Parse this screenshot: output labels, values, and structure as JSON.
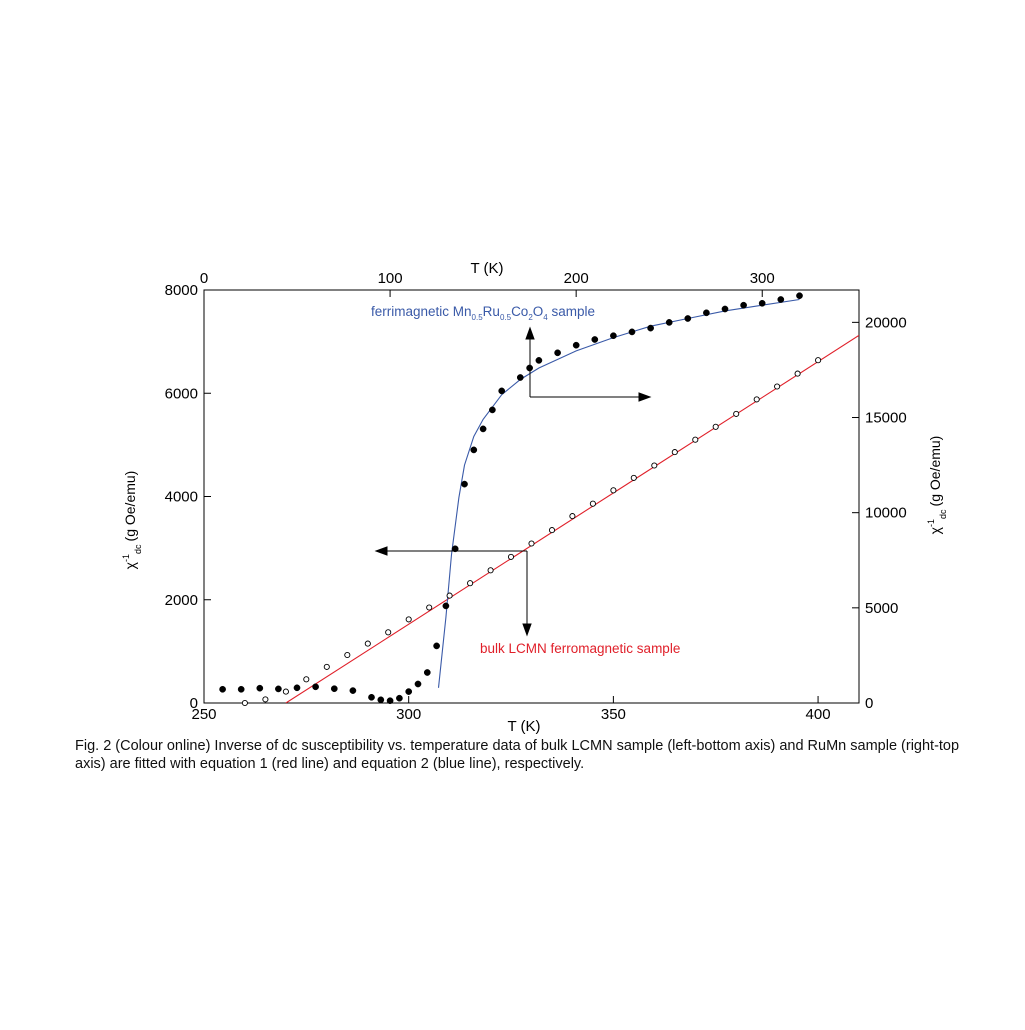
{
  "chart_data": {
    "type": "scatter",
    "axes": {
      "bottom": {
        "label": "T (K)",
        "range": [
          250,
          410
        ],
        "ticks": [
          250,
          300,
          350,
          400
        ]
      },
      "top": {
        "label": "T (K)",
        "range": [
          0,
          352
        ],
        "ticks": [
          0,
          100,
          200,
          300
        ]
      },
      "left": {
        "label_main": "χ",
        "label_sup": "-1",
        "label_sub": "dc",
        "label_unit": "(g Oe/emu)",
        "range": [
          0,
          8000
        ],
        "ticks": [
          0,
          2000,
          4000,
          6000,
          8000
        ]
      },
      "right": {
        "label_main": "χ",
        "label_sup": "-1",
        "label_sub": "dc",
        "label_unit": "(g Oe/emu)",
        "range": [
          0,
          21700
        ],
        "ticks": [
          0,
          5000,
          10000,
          15000,
          20000
        ]
      }
    },
    "grid": false,
    "series": [
      {
        "marker": "filled-circle",
        "axes": [
          "top",
          "right"
        ],
        "color": "#000000",
        "x": [
          10,
          20,
          30,
          40,
          50,
          60,
          70,
          80,
          90,
          95,
          100,
          105,
          110,
          115,
          120,
          125,
          130,
          135,
          140,
          145,
          150,
          155,
          160,
          170,
          175,
          180,
          190,
          200,
          210,
          220,
          230,
          240,
          250,
          260,
          270,
          280,
          290,
          300,
          310,
          320
        ],
        "y": [
          720,
          720,
          780,
          740,
          800,
          850,
          750,
          650,
          300,
          170,
          120,
          250,
          600,
          1000,
          1600,
          3000,
          5100,
          8100,
          11500,
          13300,
          14400,
          15400,
          16400,
          17100,
          17600,
          18000,
          18400,
          18800,
          19100,
          19300,
          19500,
          19700,
          20000,
          20200,
          20500,
          20700,
          20900,
          21000,
          21200,
          21400
        ]
      },
      {
        "marker": "open-circle",
        "axes": [
          "bottom",
          "left"
        ],
        "color": "#000000",
        "x": [
          260,
          265,
          270,
          275,
          280,
          285,
          290,
          295,
          300,
          305,
          310,
          315,
          320,
          325,
          330,
          335,
          340,
          345,
          350,
          355,
          360,
          365,
          370,
          375,
          380,
          385,
          390,
          395,
          400
        ],
        "y": [
          0,
          70,
          220,
          460,
          700,
          930,
          1150,
          1370,
          1620,
          1850,
          2080,
          2320,
          2570,
          2830,
          3090,
          3350,
          3620,
          3860,
          4120,
          4360,
          4600,
          4860,
          5100,
          5350,
          5600,
          5880,
          6130,
          6380,
          6640
        ]
      },
      {
        "name": "equation 1 fit",
        "line": true,
        "axes": [
          "bottom",
          "left"
        ],
        "color": "#e0202a",
        "x": [
          270,
          410
        ],
        "y": [
          0,
          7120
        ]
      },
      {
        "name": "equation 2 fit",
        "line": true,
        "axes": [
          "top",
          "right"
        ],
        "color": "#3a5aa8",
        "x": [
          126,
          130,
          133,
          137,
          140,
          145,
          150,
          160,
          170,
          180,
          200,
          220,
          240,
          260,
          280,
          300,
          320
        ],
        "y": [
          800,
          4500,
          7800,
          10800,
          12500,
          14000,
          14900,
          16200,
          17000,
          17600,
          18500,
          19200,
          19800,
          20200,
          20600,
          20900,
          21200
        ]
      }
    ],
    "annotations": [
      {
        "text_pre": "ferrimagnetic Mn",
        "sub1": "0.5",
        "mid1": "Ru",
        "sub2": "0.5",
        "mid2": "Co",
        "sub3": "2",
        "mid3": "O",
        "sub4": "4",
        "text_post": " sample",
        "color": "#3a5aa8"
      },
      {
        "text": "bulk LCMN ferromagnetic sample",
        "color": "#e0202a"
      }
    ]
  },
  "caption": "Fig. 2 (Colour online) Inverse of dc susceptibility vs. temperature data of bulk LCMN sample (left-bottom axis) and RuMn sample (right-top axis) are fitted with equation 1 (red line) and equation 2 (blue line), respectively."
}
